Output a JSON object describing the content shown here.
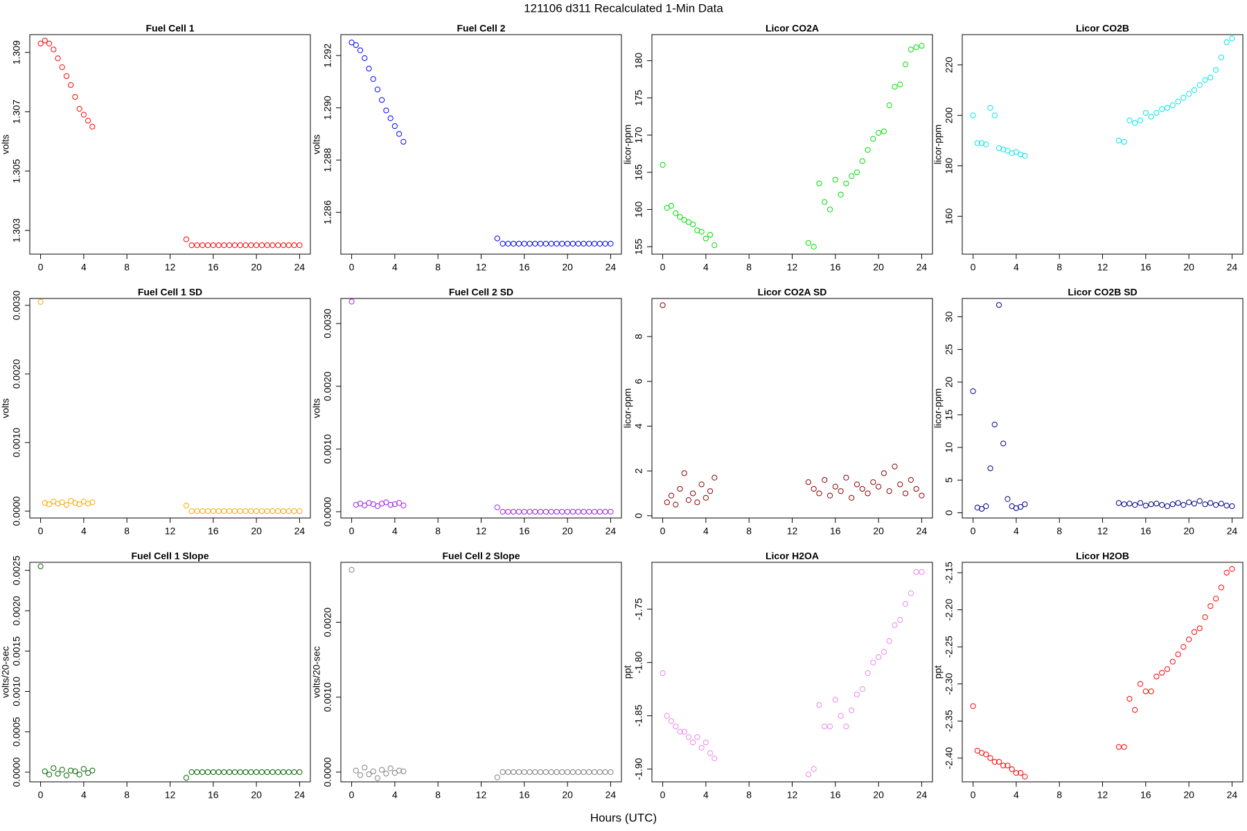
{
  "title": "121106   d311   Recalculated 1-Min Data",
  "xlabel": "Hours (UTC)",
  "chart_data": [
    {
      "type": "scatter",
      "title": "Fuel Cell 1",
      "ylabel": "volts",
      "color": "#ff0000",
      "x": [
        0,
        0.4,
        0.8,
        1.2,
        1.6,
        2,
        2.4,
        2.8,
        3.2,
        3.6,
        4,
        4.4,
        4.8,
        13.5,
        14,
        14.5,
        15,
        15.5,
        16,
        16.5,
        17,
        17.5,
        18,
        18.5,
        19,
        19.5,
        20,
        20.5,
        21,
        21.5,
        22,
        22.5,
        23,
        23.5,
        24
      ],
      "values": [
        1.3093,
        1.3094,
        1.3093,
        1.3091,
        1.3088,
        1.3085,
        1.3082,
        1.3079,
        1.3075,
        1.3071,
        1.3069,
        1.3067,
        1.3065,
        1.3027,
        1.3025,
        1.3025,
        1.3025,
        1.3025,
        1.3025,
        1.3025,
        1.3025,
        1.3025,
        1.3025,
        1.3025,
        1.3025,
        1.3025,
        1.3025,
        1.3025,
        1.3025,
        1.3025,
        1.3025,
        1.3025,
        1.3025,
        1.3025,
        1.3025
      ],
      "xlim": [
        -1,
        25
      ],
      "xticks": [
        0,
        4,
        8,
        12,
        16,
        20,
        24
      ],
      "ylim": [
        1.3022,
        1.3096
      ],
      "yticks": [
        1.303,
        1.305,
        1.307,
        1.309
      ]
    },
    {
      "type": "scatter",
      "title": "Fuel Cell 2",
      "ylabel": "volts",
      "color": "#0000ff",
      "x": [
        0,
        0.4,
        0.8,
        1.2,
        1.6,
        2,
        2.4,
        2.8,
        3.2,
        3.6,
        4,
        4.4,
        4.8,
        13.5,
        14,
        14.5,
        15,
        15.5,
        16,
        16.5,
        17,
        17.5,
        18,
        18.5,
        19,
        19.5,
        20,
        20.5,
        21,
        21.5,
        22,
        22.5,
        23,
        23.5,
        24
      ],
      "values": [
        1.2925,
        1.2924,
        1.2922,
        1.2919,
        1.2915,
        1.2911,
        1.2907,
        1.2903,
        1.2899,
        1.2896,
        1.2893,
        1.289,
        1.2887,
        1.285,
        1.2848,
        1.2848,
        1.2848,
        1.2848,
        1.2848,
        1.2848,
        1.2848,
        1.2848,
        1.2848,
        1.2848,
        1.2848,
        1.2848,
        1.2848,
        1.2848,
        1.2848,
        1.2848,
        1.2848,
        1.2848,
        1.2848,
        1.2848,
        1.2848
      ],
      "xlim": [
        -1,
        25
      ],
      "xticks": [
        0,
        4,
        8,
        12,
        16,
        20,
        24
      ],
      "ylim": [
        1.2844,
        1.2928
      ],
      "yticks": [
        1.286,
        1.288,
        {
          "value": 1.29,
          "label": "1.290"
        },
        1.292
      ]
    },
    {
      "type": "scatter",
      "title": "Licor CO2A",
      "ylabel": "licor-ppm",
      "color": "#00dd00",
      "x": [
        0,
        0.4,
        0.8,
        1.2,
        1.6,
        2,
        2.4,
        2.8,
        3.2,
        3.6,
        4,
        4.4,
        4.8,
        13.5,
        14,
        14.5,
        15,
        15.5,
        16,
        16.5,
        17,
        17.5,
        18,
        18.5,
        19,
        19.5,
        20,
        20.5,
        21,
        21.5,
        22,
        22.5,
        23,
        23.5,
        24
      ],
      "values": [
        166,
        160.2,
        160.5,
        159.5,
        159,
        158.6,
        158.3,
        158,
        157.2,
        157,
        156.1,
        156.6,
        155.2,
        155.5,
        155,
        163.5,
        161,
        160,
        164,
        162,
        163.5,
        164.5,
        165,
        166.5,
        168,
        169.5,
        170.3,
        170.5,
        174,
        176.5,
        176.8,
        179.5,
        181.5,
        181.8,
        182
      ],
      "xlim": [
        -1,
        25
      ],
      "xticks": [
        0,
        4,
        8,
        12,
        16,
        20,
        24
      ],
      "ylim": [
        154,
        183.5
      ],
      "yticks": [
        155,
        160,
        165,
        170,
        175,
        180
      ]
    },
    {
      "type": "scatter",
      "title": "Licor CO2B",
      "ylabel": "licor-ppm",
      "color": "#00e5ee",
      "x": [
        0,
        0.4,
        0.8,
        1.2,
        1.6,
        2,
        2.4,
        2.8,
        3.2,
        3.6,
        4,
        4.4,
        4.8,
        13.5,
        14,
        14.5,
        15,
        15.5,
        16,
        16.5,
        17,
        17.5,
        18,
        18.5,
        19,
        19.5,
        20,
        20.5,
        21,
        21.5,
        22,
        22.5,
        23,
        23.5,
        24
      ],
      "values": [
        200,
        189,
        189,
        188.5,
        203,
        200,
        187,
        186.5,
        186,
        185,
        185.5,
        184.5,
        184,
        190,
        189.5,
        198,
        197,
        198,
        201,
        199.5,
        201,
        202.5,
        203,
        204,
        205.5,
        207,
        208.5,
        210,
        212,
        214,
        215,
        218,
        223,
        229,
        230.5
      ],
      "xlim": [
        -1,
        25
      ],
      "xticks": [
        0,
        4,
        8,
        12,
        16,
        20,
        24
      ],
      "ylim": [
        145,
        232
      ],
      "yticks": [
        160,
        180,
        200,
        220
      ]
    },
    {
      "type": "scatter",
      "title": "Fuel Cell 1 SD",
      "ylabel": "volts",
      "color": "#ffa500",
      "x": [
        0,
        0.4,
        0.8,
        1.2,
        1.6,
        2,
        2.4,
        2.8,
        3.2,
        3.6,
        4,
        4.4,
        4.8,
        13.5,
        14,
        14.5,
        15,
        15.5,
        16,
        16.5,
        17,
        17.5,
        18,
        18.5,
        19,
        19.5,
        20,
        20.5,
        21,
        21.5,
        22,
        22.5,
        23,
        23.5,
        24
      ],
      "values": [
        0.00305,
        0.00012,
        0.0001,
        0.00014,
        0.00011,
        0.00013,
        9e-05,
        0.00015,
        0.00012,
        0.0001,
        0.00014,
        0.00011,
        0.00013,
        8e-05,
        0,
        0,
        0,
        0,
        0,
        0,
        0,
        0,
        0,
        0,
        0,
        0,
        0,
        0,
        0,
        0,
        0,
        0,
        0,
        0,
        0
      ],
      "xlim": [
        -1,
        25
      ],
      "xticks": [
        0,
        4,
        8,
        12,
        16,
        20,
        24
      ],
      "ylim": [
        -0.0001,
        0.0031
      ],
      "yticks": [
        {
          "value": 0,
          "label": "0.0000"
        },
        {
          "value": 0.001,
          "label": "0.0010"
        },
        {
          "value": 0.002,
          "label": "0.0020"
        },
        {
          "value": 0.003,
          "label": "0.0030"
        }
      ]
    },
    {
      "type": "scatter",
      "title": "Fuel Cell 2 SD",
      "ylabel": "volts",
      "color": "#a020f0",
      "x": [
        0,
        0.4,
        0.8,
        1.2,
        1.6,
        2,
        2.4,
        2.8,
        3.2,
        3.6,
        4,
        4.4,
        4.8,
        13.5,
        14,
        14.5,
        15,
        15.5,
        16,
        16.5,
        17,
        17.5,
        18,
        18.5,
        19,
        19.5,
        20,
        20.5,
        21,
        21.5,
        22,
        22.5,
        23,
        23.5,
        24
      ],
      "values": [
        0.00335,
        0.00011,
        0.00013,
        0.0001,
        0.00014,
        0.00012,
        9e-05,
        0.00013,
        0.00015,
        0.00011,
        0.00012,
        0.00014,
        0.0001,
        7e-05,
        0,
        0,
        0,
        0,
        0,
        0,
        0,
        0,
        0,
        0,
        0,
        0,
        0,
        0,
        0,
        0,
        0,
        0,
        0,
        0,
        0
      ],
      "xlim": [
        -1,
        25
      ],
      "xticks": [
        0,
        4,
        8,
        12,
        16,
        20,
        24
      ],
      "ylim": [
        -0.0001,
        0.0034
      ],
      "yticks": [
        {
          "value": 0,
          "label": "0.0000"
        },
        {
          "value": 0.001,
          "label": "0.0010"
        },
        {
          "value": 0.002,
          "label": "0.0020"
        },
        {
          "value": 0.003,
          "label": "0.0030"
        }
      ]
    },
    {
      "type": "scatter",
      "title": "Licor CO2A SD",
      "ylabel": "licor-ppm",
      "color": "#8b0000",
      "x": [
        0,
        0.4,
        0.8,
        1.2,
        1.6,
        2,
        2.4,
        2.8,
        3.2,
        3.6,
        4,
        4.4,
        4.8,
        13.5,
        14,
        14.5,
        15,
        15.5,
        16,
        16.5,
        17,
        17.5,
        18,
        18.5,
        19,
        19.5,
        20,
        20.5,
        21,
        21.5,
        22,
        22.5,
        23,
        23.5,
        24
      ],
      "values": [
        9.4,
        0.6,
        0.9,
        0.5,
        1.2,
        1.9,
        0.7,
        1.0,
        0.6,
        1.4,
        0.8,
        1.1,
        1.7,
        1.5,
        1.2,
        1.0,
        1.6,
        0.9,
        1.3,
        1.1,
        1.7,
        0.8,
        1.4,
        1.2,
        1.0,
        1.5,
        1.3,
        1.9,
        1.1,
        2.2,
        1.4,
        1.0,
        1.6,
        1.2,
        0.9
      ],
      "xlim": [
        -1,
        25
      ],
      "xticks": [
        0,
        4,
        8,
        12,
        16,
        20,
        24
      ],
      "ylim": [
        -0.1,
        9.7
      ],
      "yticks": [
        0,
        2,
        4,
        6,
        8
      ]
    },
    {
      "type": "scatter",
      "title": "Licor CO2B SD",
      "ylabel": "licor-ppm",
      "color": "#000080",
      "x": [
        0,
        0.4,
        0.8,
        1.2,
        1.6,
        2,
        2.4,
        2.8,
        3.2,
        3.6,
        4,
        4.4,
        4.8,
        13.5,
        14,
        14.5,
        15,
        15.5,
        16,
        16.5,
        17,
        17.5,
        18,
        18.5,
        19,
        19.5,
        20,
        20.5,
        21,
        21.5,
        22,
        22.5,
        23,
        23.5,
        24
      ],
      "values": [
        18.6,
        0.8,
        0.6,
        1.0,
        6.8,
        13.5,
        31.8,
        10.6,
        2.1,
        1.0,
        0.7,
        0.9,
        1.3,
        1.5,
        1.3,
        1.4,
        1.2,
        1.5,
        1.1,
        1.3,
        1.4,
        1.2,
        1.0,
        1.3,
        1.5,
        1.2,
        1.6,
        1.4,
        1.8,
        1.3,
        1.5,
        1.2,
        1.4,
        1.1,
        1.0
      ],
      "xlim": [
        -1,
        25
      ],
      "xticks": [
        0,
        4,
        8,
        12,
        16,
        20,
        24
      ],
      "ylim": [
        -0.8,
        32.8
      ],
      "yticks": [
        0,
        5,
        10,
        15,
        20,
        25,
        30
      ]
    },
    {
      "type": "scatter",
      "title": "Fuel Cell 1 Slope",
      "ylabel": "volts/20-sec",
      "color": "#006400",
      "x": [
        0,
        0.4,
        0.8,
        1.2,
        1.6,
        2,
        2.4,
        2.8,
        3.2,
        3.6,
        4,
        4.4,
        4.8,
        13.5,
        14,
        14.5,
        15,
        15.5,
        16,
        16.5,
        17,
        17.5,
        18,
        18.5,
        19,
        19.5,
        20,
        20.5,
        21,
        21.5,
        22,
        22.5,
        23,
        23.5,
        24
      ],
      "values": [
        0.00255,
        1e-05,
        -3e-05,
        5e-05,
        -2e-05,
        3e-05,
        -4e-05,
        2e-05,
        1e-05,
        -3e-05,
        4e-05,
        -1e-05,
        2e-05,
        -7e-05,
        0,
        0,
        0,
        0,
        0,
        0,
        0,
        0,
        0,
        0,
        0,
        0,
        0,
        0,
        0,
        0,
        0,
        0,
        0,
        0,
        0
      ],
      "xlim": [
        -1,
        25
      ],
      "xticks": [
        0,
        4,
        8,
        12,
        16,
        20,
        24
      ],
      "ylim": [
        -0.00012,
        0.0026
      ],
      "yticks": [
        {
          "value": 0,
          "label": "0.0000"
        },
        {
          "value": 0.0005,
          "label": "0.0005"
        },
        {
          "value": 0.001,
          "label": "0.0010"
        },
        {
          "value": 0.0015,
          "label": "0.0015"
        },
        {
          "value": 0.002,
          "label": "0.0020"
        },
        {
          "value": 0.0025,
          "label": "0.0025"
        }
      ]
    },
    {
      "type": "scatter",
      "title": "Fuel Cell 2 Slope",
      "ylabel": "volts/20-sec",
      "color": "#808080",
      "x": [
        0,
        0.4,
        0.8,
        1.2,
        1.6,
        2,
        2.4,
        2.8,
        3.2,
        3.6,
        4,
        4.4,
        4.8,
        13.5,
        14,
        14.5,
        15,
        15.5,
        16,
        16.5,
        17,
        17.5,
        18,
        18.5,
        19,
        19.5,
        20,
        20.5,
        21,
        21.5,
        22,
        22.5,
        23,
        23.5,
        24
      ],
      "values": [
        0.0027,
        2e-05,
        -4e-05,
        6e-05,
        -3e-05,
        1e-05,
        -8e-05,
        3e-05,
        -2e-05,
        5e-05,
        -1e-05,
        2e-05,
        1e-05,
        -7e-05,
        0,
        0,
        0,
        0,
        0,
        0,
        0,
        0,
        0,
        0,
        0,
        0,
        0,
        0,
        0,
        0,
        0,
        0,
        0,
        0,
        0
      ],
      "xlim": [
        -1,
        25
      ],
      "xticks": [
        0,
        4,
        8,
        12,
        16,
        20,
        24
      ],
      "ylim": [
        -0.00013,
        0.0028
      ],
      "yticks": [
        {
          "value": 0,
          "label": "0.0000"
        },
        {
          "value": 0.001,
          "label": "0.0010"
        },
        {
          "value": 0.002,
          "label": "0.0020"
        }
      ]
    },
    {
      "type": "scatter",
      "title": "Licor H2OA",
      "ylabel": "ppt",
      "color": "#ee82ee",
      "x": [
        0,
        0.4,
        0.8,
        1.2,
        1.6,
        2,
        2.4,
        2.8,
        3.2,
        3.6,
        4,
        4.4,
        4.8,
        13.5,
        14,
        14.5,
        15,
        15.5,
        16,
        16.5,
        17,
        17.5,
        18,
        18.5,
        19,
        19.5,
        20,
        20.5,
        21,
        21.5,
        22,
        22.5,
        23,
        23.5,
        24
      ],
      "values": [
        -1.81,
        -1.85,
        -1.855,
        -1.86,
        -1.865,
        -1.865,
        -1.87,
        -1.875,
        -1.87,
        -1.88,
        -1.875,
        -1.885,
        -1.89,
        -1.905,
        -1.9,
        -1.84,
        -1.86,
        -1.86,
        -1.835,
        -1.85,
        -1.86,
        -1.845,
        -1.83,
        -1.825,
        -1.81,
        -1.8,
        -1.795,
        -1.79,
        -1.78,
        -1.765,
        -1.76,
        -1.745,
        -1.735,
        -1.715,
        -1.715
      ],
      "xlim": [
        -1,
        25
      ],
      "xticks": [
        0,
        4,
        8,
        12,
        16,
        20,
        24
      ],
      "ylim": [
        -1.912,
        -1.706
      ],
      "yticks": [
        {
          "value": -1.9,
          "label": "-1.90"
        },
        -1.85,
        {
          "value": -1.8,
          "label": "-1.80"
        },
        -1.75
      ]
    },
    {
      "type": "scatter",
      "title": "Licor H2OB",
      "ylabel": "ppt",
      "color": "#ff0000",
      "x": [
        0,
        0.4,
        0.8,
        1.2,
        1.6,
        2,
        2.4,
        2.8,
        3.2,
        3.6,
        4,
        4.4,
        4.8,
        13.5,
        14,
        14.5,
        15,
        15.5,
        16,
        16.5,
        17,
        17.5,
        18,
        18.5,
        19,
        19.5,
        20,
        20.5,
        21,
        21.5,
        22,
        22.5,
        23,
        23.5,
        24
      ],
      "values": [
        -2.33,
        -2.39,
        -2.393,
        -2.395,
        -2.4,
        -2.405,
        -2.405,
        -2.41,
        -2.41,
        -2.415,
        -2.42,
        -2.42,
        -2.425,
        -2.385,
        -2.385,
        -2.32,
        -2.335,
        -2.3,
        -2.31,
        -2.31,
        -2.29,
        -2.285,
        -2.28,
        -2.27,
        -2.26,
        -2.25,
        -2.24,
        -2.23,
        -2.225,
        -2.21,
        -2.195,
        -2.185,
        -2.17,
        -2.15,
        -2.145
      ],
      "xlim": [
        -1,
        25
      ],
      "xticks": [
        0,
        4,
        8,
        12,
        16,
        20,
        24
      ],
      "ylim": [
        -2.432,
        -2.136
      ],
      "yticks": [
        {
          "value": -2.4,
          "label": "-2.40"
        },
        -2.35,
        {
          "value": -2.3,
          "label": "-2.30"
        },
        -2.25,
        {
          "value": -2.2,
          "label": "-2.20"
        },
        -2.15
      ]
    }
  ]
}
